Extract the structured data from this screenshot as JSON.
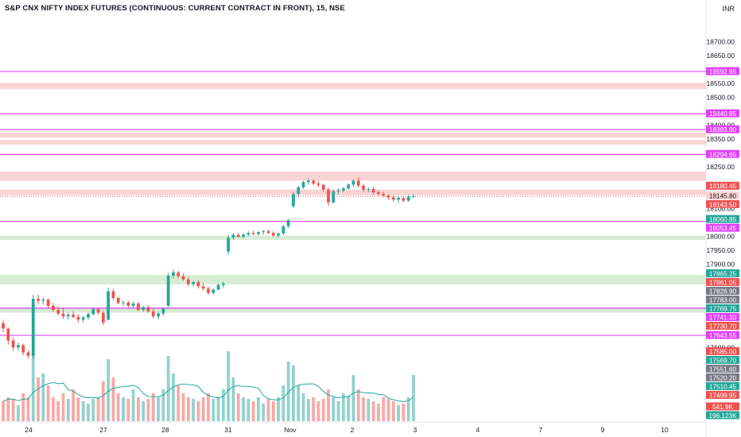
{
  "chart_data": {
    "type": "candlestick",
    "title": "S&P CNX NIFTY INDEX FUTURES (CONTINUOUS: CURRENT CONTRACT IN FRONT), 15, NSE",
    "currency": "INR",
    "y_axis": {
      "ylim": [
        17578,
        18770
      ],
      "ticks": [
        18700,
        18650,
        18600,
        18550,
        18500,
        18450,
        18400,
        18350,
        18300,
        18250,
        18200,
        18150,
        18100,
        18050,
        18000,
        17950,
        17900,
        17850,
        17800,
        17750,
        17700,
        17650,
        17600
      ],
      "tick_labels": [
        "18700.00",
        "18650.00",
        "",
        "18550.00",
        "18500.00",
        "",
        "18400.00",
        "18350.00",
        "",
        "18250.00",
        "",
        "",
        "18100.00",
        "",
        "18000.00",
        "17950.00",
        "17900.00",
        "",
        "",
        "",
        "",
        "",
        "17600.00"
      ]
    },
    "x_axis": {
      "tick_labels": [
        "24",
        "27",
        "28",
        "31",
        "Nov",
        "2",
        "3",
        "4",
        "7",
        "9",
        "10"
      ]
    },
    "lines": [
      {
        "label": "18592.95",
        "value": 18592.95,
        "color": "#e040fb"
      },
      {
        "label": "18440.85",
        "value": 18440.85,
        "color": "#e040fb"
      },
      {
        "label": "18383.90",
        "value": 18383.9,
        "color": "#e040fb"
      },
      {
        "label": "18294.65",
        "value": 18294.65,
        "color": "#e040fb"
      },
      {
        "label": "18053.45",
        "value": 18053.45,
        "color": "#e040fb"
      },
      {
        "label": "17741.30",
        "value": 17741.3,
        "color": "#e040fb"
      },
      {
        "label": "17643.55",
        "value": 17643.55,
        "color": "#e040fb"
      }
    ],
    "zones": [
      {
        "low": 18530,
        "high": 18552,
        "color": "#fbd3d3"
      },
      {
        "low": 18355,
        "high": 18373,
        "color": "#fbd3d3"
      },
      {
        "low": 18330,
        "high": 18346,
        "color": "#fbd3d3"
      },
      {
        "low": 18200,
        "high": 18233,
        "color": "#fbd3d3"
      },
      {
        "low": 18148,
        "high": 18168,
        "color": "#fbd3d3"
      },
      {
        "low": 17987,
        "high": 18002,
        "color": "#d6ecd3"
      },
      {
        "low": 17827,
        "high": 17861,
        "color": "#d6ecd3"
      },
      {
        "low": 17725,
        "high": 17744,
        "color": "#d6ecd3"
      }
    ],
    "price_labels": [
      {
        "text": "18592.95",
        "value": 18592.95,
        "color": "#e040fb",
        "text_color": "#ffffff"
      },
      {
        "text": "18440.85",
        "value": 18440.85,
        "color": "#e040fb",
        "text_color": "#ffffff"
      },
      {
        "text": "18383.90",
        "value": 18383.9,
        "color": "#e040fb",
        "text_color": "#ffffff"
      },
      {
        "text": "18294.65",
        "value": 18294.65,
        "color": "#e040fb",
        "text_color": "#ffffff"
      },
      {
        "text": "18180.45",
        "value": 18180.45,
        "color": "#ef5350",
        "text_color": "#ffffff"
      },
      {
        "text": "18145.80",
        "value": 18145.8,
        "color": "#fbd3d3",
        "text_color": "#131722"
      },
      {
        "text": "18143.50",
        "value": 18143.5,
        "color": "#ef5350",
        "text_color": "#ffffff"
      },
      {
        "text": "18060.85",
        "value": 18060.85,
        "color": "#26a69a",
        "text_color": "#ffffff"
      },
      {
        "text": "18053.45",
        "value": 18053.45,
        "color": "#e040fb",
        "text_color": "#ffffff"
      },
      {
        "text": "17865.25",
        "value": 17865.25,
        "color": "#26a69a",
        "text_color": "#ffffff"
      },
      {
        "text": "17861.05",
        "value": 17861.05,
        "color": "#ef5350",
        "text_color": "#ffffff"
      },
      {
        "text": "17826.90",
        "value": 17826.9,
        "color": "#787b86",
        "text_color": "#ffffff"
      },
      {
        "text": "17783.00",
        "value": 17783.0,
        "color": "#787b86",
        "text_color": "#ffffff"
      },
      {
        "text": "17769.75",
        "value": 17769.75,
        "color": "#26a69a",
        "text_color": "#ffffff"
      },
      {
        "text": "17741.30",
        "value": 17741.3,
        "color": "#e040fb",
        "text_color": "#ffffff"
      },
      {
        "text": "17730.70",
        "value": 17730.7,
        "color": "#ef5350",
        "text_color": "#ffffff"
      },
      {
        "text": "17643.55",
        "value": 17643.55,
        "color": "#e040fb",
        "text_color": "#ffffff"
      },
      {
        "text": "17585.00",
        "value": 17585.0,
        "color": "#ef5350",
        "text_color": "#ffffff"
      },
      {
        "text": "17569.70",
        "value": 17569.7,
        "color": "#26a69a",
        "text_color": "#ffffff"
      },
      {
        "text": "17551.60",
        "value": 17551.6,
        "color": "#787b86",
        "text_color": "#ffffff"
      },
      {
        "text": "17520.20",
        "value": 17520.2,
        "color": "#787b86",
        "text_color": "#ffffff"
      },
      {
        "text": "17510.45",
        "value": 17510.45,
        "color": "#26a69a",
        "text_color": "#ffffff"
      },
      {
        "text": "17499.95",
        "value": 17499.95,
        "color": "#ef5350",
        "text_color": "#ffffff"
      },
      {
        "text": "541.9K",
        "value": null,
        "color": "#ef5350",
        "text_color": "#ffffff"
      },
      {
        "text": "196.123K",
        "value": null,
        "color": "#26a69a",
        "text_color": "#ffffff"
      }
    ],
    "series": [
      {
        "name": "price",
        "ohlc": [
          [
            17687,
            17700,
            17655,
            17668
          ],
          [
            17668,
            17672,
            17610,
            17625
          ],
          [
            17625,
            17636,
            17588,
            17600
          ],
          [
            17600,
            17618,
            17590,
            17608
          ],
          [
            17608,
            17614,
            17572,
            17582
          ],
          [
            17582,
            17590,
            17560,
            17570
          ],
          [
            17570,
            17790,
            17560,
            17775
          ],
          [
            17775,
            17790,
            17755,
            17768
          ],
          [
            17768,
            17780,
            17755,
            17772
          ],
          [
            17772,
            17776,
            17740,
            17750
          ],
          [
            17750,
            17760,
            17728,
            17735
          ],
          [
            17735,
            17748,
            17715,
            17722
          ],
          [
            17722,
            17740,
            17702,
            17712
          ],
          [
            17712,
            17726,
            17700,
            17718
          ],
          [
            17718,
            17730,
            17705,
            17710
          ],
          [
            17710,
            17720,
            17690,
            17700
          ],
          [
            17700,
            17715,
            17690,
            17708
          ],
          [
            17708,
            17725,
            17700,
            17720
          ],
          [
            17720,
            17745,
            17715,
            17738
          ],
          [
            17738,
            17742,
            17718,
            17725
          ],
          [
            17725,
            17732,
            17680,
            17690
          ],
          [
            17700,
            17815,
            17698,
            17802
          ],
          [
            17802,
            17810,
            17770,
            17778
          ],
          [
            17778,
            17782,
            17755,
            17760
          ],
          [
            17760,
            17770,
            17748,
            17762
          ],
          [
            17762,
            17768,
            17744,
            17750
          ],
          [
            17750,
            17766,
            17740,
            17758
          ],
          [
            17758,
            17764,
            17730,
            17735
          ],
          [
            17735,
            17750,
            17728,
            17745
          ],
          [
            17745,
            17752,
            17725,
            17730
          ],
          [
            17730,
            17742,
            17705,
            17712
          ],
          [
            17712,
            17728,
            17700,
            17722
          ],
          [
            17722,
            17745,
            17715,
            17740
          ],
          [
            17750,
            17868,
            17745,
            17858
          ],
          [
            17858,
            17880,
            17848,
            17870
          ],
          [
            17870,
            17876,
            17850,
            17856
          ],
          [
            17856,
            17866,
            17840,
            17845
          ],
          [
            17845,
            17852,
            17820,
            17828
          ],
          [
            17828,
            17840,
            17818,
            17835
          ],
          [
            17835,
            17842,
            17812,
            17820
          ],
          [
            17820,
            17832,
            17805,
            17812
          ],
          [
            17812,
            17820,
            17790,
            17796
          ],
          [
            17796,
            17812,
            17792,
            17808
          ],
          [
            17808,
            17830,
            17805,
            17825
          ],
          [
            17825,
            17836,
            17815,
            17830
          ],
          [
            17945,
            18005,
            17935,
            17995
          ],
          [
            17995,
            18012,
            17988,
            18005
          ],
          [
            18005,
            18010,
            17995,
            17998
          ],
          [
            17998,
            18010,
            17992,
            18006
          ],
          [
            18006,
            18018,
            18000,
            18012
          ],
          [
            18012,
            18020,
            18004,
            18008
          ],
          [
            18008,
            18018,
            18002,
            18015
          ],
          [
            18015,
            18022,
            18006,
            18018
          ],
          [
            18018,
            18024,
            18008,
            18012
          ],
          [
            18012,
            18018,
            17998,
            18003
          ],
          [
            18003,
            18014,
            17996,
            18010
          ],
          [
            18010,
            18040,
            18005,
            18036
          ],
          [
            18036,
            18062,
            18030,
            18058
          ],
          [
            18108,
            18160,
            18102,
            18152
          ],
          [
            18152,
            18182,
            18140,
            18176
          ],
          [
            18176,
            18200,
            18170,
            18195
          ],
          [
            18195,
            18208,
            18186,
            18200
          ],
          [
            18200,
            18204,
            18184,
            18190
          ],
          [
            18190,
            18198,
            18176,
            18185
          ],
          [
            18185,
            18190,
            18160,
            18168
          ],
          [
            18168,
            18175,
            18110,
            18122
          ],
          [
            18122,
            18168,
            18118,
            18162
          ],
          [
            18162,
            18172,
            18150,
            18165
          ],
          [
            18165,
            18178,
            18158,
            18172
          ],
          [
            18172,
            18190,
            18168,
            18186
          ],
          [
            18186,
            18205,
            18178,
            18200
          ],
          [
            18200,
            18212,
            18175,
            18182
          ],
          [
            18182,
            18188,
            18160,
            18168
          ],
          [
            18168,
            18176,
            18158,
            18170
          ],
          [
            18170,
            18178,
            18150,
            18158
          ],
          [
            18158,
            18165,
            18145,
            18152
          ],
          [
            18152,
            18160,
            18140,
            18147
          ],
          [
            18147,
            18150,
            18132,
            18140
          ],
          [
            18140,
            18148,
            18125,
            18132
          ],
          [
            18132,
            18145,
            18120,
            18138
          ],
          [
            18138,
            18142,
            18122,
            18128
          ],
          [
            18128,
            18150,
            18124,
            18143
          ],
          [
            18143,
            18152,
            18138,
            18144
          ]
        ]
      },
      {
        "name": "volume",
        "values": [
          0.25,
          0.3,
          0.28,
          0.2,
          0.35,
          0.3,
          0.85,
          0.55,
          0.6,
          0.45,
          0.3,
          0.25,
          0.35,
          0.28,
          0.4,
          0.3,
          0.25,
          0.22,
          0.28,
          0.3,
          0.5,
          0.78,
          0.55,
          0.35,
          0.3,
          0.28,
          0.4,
          0.3,
          0.25,
          0.28,
          0.35,
          0.3,
          0.4,
          0.82,
          0.6,
          0.45,
          0.35,
          0.3,
          0.28,
          0.25,
          0.3,
          0.35,
          0.28,
          0.3,
          0.4,
          0.88,
          0.55,
          0.35,
          0.3,
          0.28,
          0.25,
          0.3,
          0.22,
          0.28,
          0.25,
          0.3,
          0.45,
          0.75,
          0.7,
          0.45,
          0.35,
          0.28,
          0.3,
          0.25,
          0.28,
          0.4,
          0.3,
          0.25,
          0.35,
          0.32,
          0.58,
          0.4,
          0.3,
          0.28,
          0.25,
          0.22,
          0.3,
          0.28,
          0.25,
          0.2,
          0.22,
          0.3,
          0.58
        ]
      }
    ]
  }
}
